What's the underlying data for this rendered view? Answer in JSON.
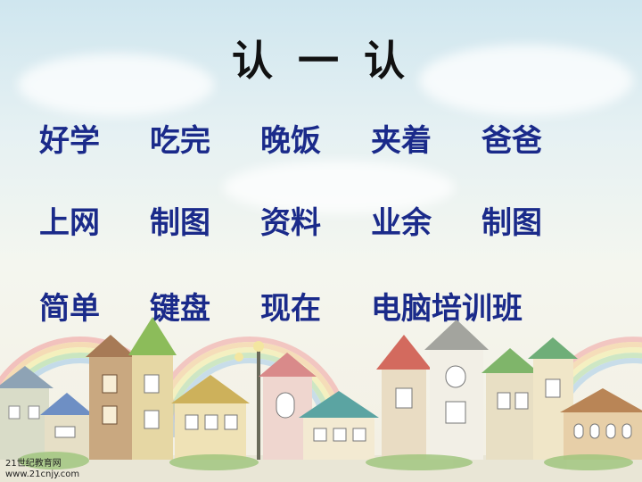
{
  "title": "认 一 认",
  "rows": [
    [
      "好学",
      "吃完",
      "晚饭",
      "夹着",
      "爸爸"
    ],
    [
      "上网",
      "制图",
      "资料",
      "业余",
      "制图"
    ],
    [
      "简单",
      "键盘",
      "现在",
      "电脑培训班"
    ]
  ],
  "watermark": {
    "line1": "21世纪教育网",
    "line2": "www.21cnjy.com"
  },
  "colors": {
    "word_text": "#1a2a8a",
    "title_text": "#111111"
  }
}
